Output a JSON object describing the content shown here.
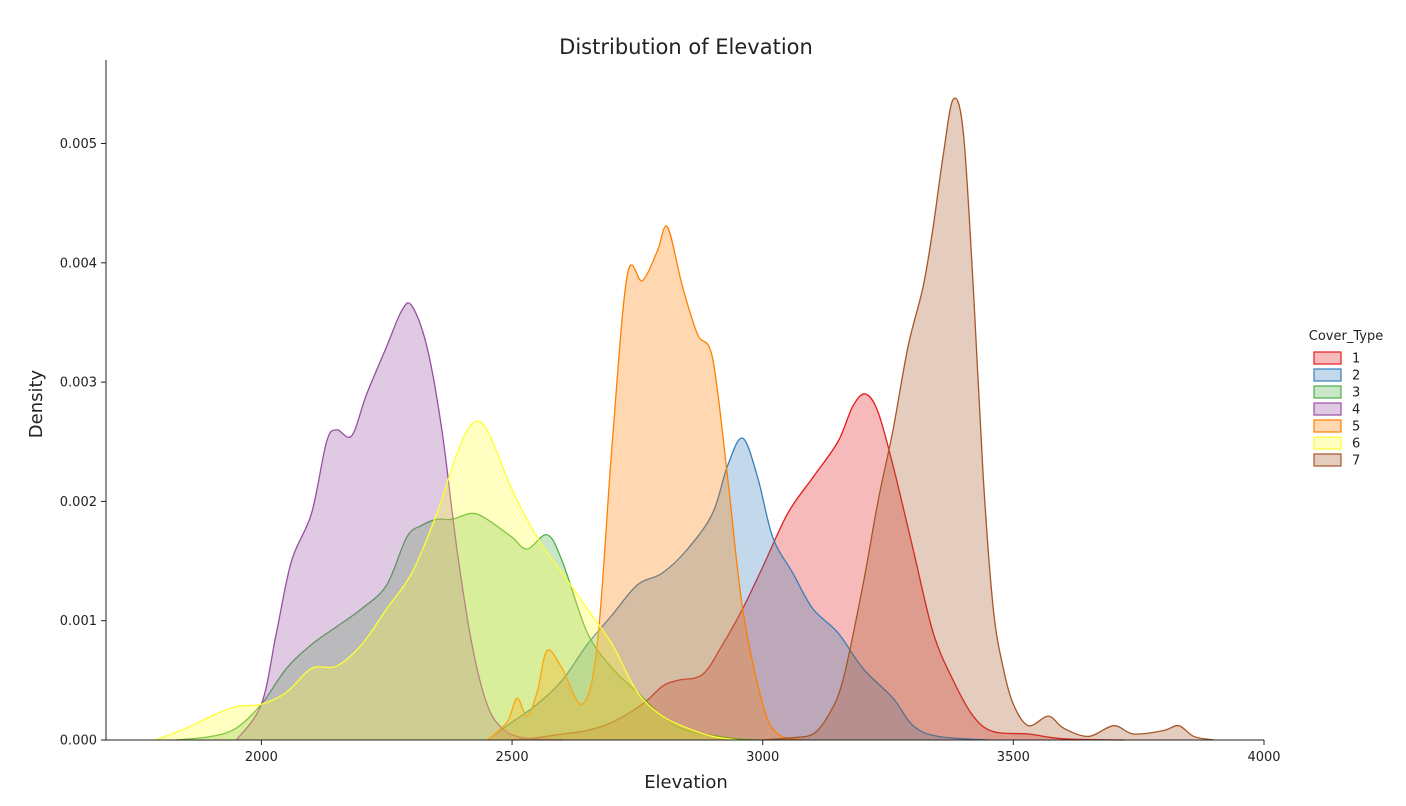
{
  "chart_data": {
    "type": "area",
    "title": "Distribution of Elevation",
    "xlabel": "Elevation",
    "ylabel": "Density",
    "xlim": [
      1690,
      4000
    ],
    "ylim": [
      0,
      0.0057
    ],
    "x_ticks": [
      2000,
      2500,
      3000,
      3500,
      4000
    ],
    "x_tick_labels": [
      "2000",
      "2500",
      "3000",
      "3500",
      "4000"
    ],
    "y_ticks": [
      0,
      0.001,
      0.002,
      0.003,
      0.004,
      0.005
    ],
    "y_tick_labels": [
      "0.000",
      "0.001",
      "0.002",
      "0.003",
      "0.004",
      "0.005"
    ],
    "grid": false,
    "legend": {
      "title": "Cover_Type",
      "placement": "right"
    },
    "series": [
      {
        "name": "1",
        "color": "#e41a1c",
        "points": [
          [
            2500,
            0
          ],
          [
            2550,
            2e-05
          ],
          [
            2600,
            5e-05
          ],
          [
            2650,
            8e-05
          ],
          [
            2700,
            0.00015
          ],
          [
            2760,
            0.0003
          ],
          [
            2800,
            0.00045
          ],
          [
            2830,
            0.0005
          ],
          [
            2880,
            0.00055
          ],
          [
            2920,
            0.0008
          ],
          [
            2960,
            0.0011
          ],
          [
            3000,
            0.00145
          ],
          [
            3050,
            0.0019
          ],
          [
            3100,
            0.0022
          ],
          [
            3150,
            0.0025
          ],
          [
            3180,
            0.0028
          ],
          [
            3205,
            0.0029
          ],
          [
            3230,
            0.00275
          ],
          [
            3260,
            0.0023
          ],
          [
            3300,
            0.0016
          ],
          [
            3340,
            0.0009
          ],
          [
            3380,
            0.0005
          ],
          [
            3420,
            0.0002
          ],
          [
            3460,
            7e-05
          ],
          [
            3530,
            5e-05
          ],
          [
            3600,
            1e-05
          ],
          [
            3720,
            0
          ]
        ]
      },
      {
        "name": "2",
        "color": "#377eb8",
        "points": [
          [
            2450,
            0
          ],
          [
            2500,
            0.00015
          ],
          [
            2550,
            0.0003
          ],
          [
            2600,
            0.0005
          ],
          [
            2650,
            0.0008
          ],
          [
            2700,
            0.00105
          ],
          [
            2750,
            0.0013
          ],
          [
            2800,
            0.0014
          ],
          [
            2850,
            0.0016
          ],
          [
            2900,
            0.0019
          ],
          [
            2930,
            0.0023
          ],
          [
            2960,
            0.00253
          ],
          [
            2990,
            0.0022
          ],
          [
            3020,
            0.0017
          ],
          [
            3060,
            0.0014
          ],
          [
            3100,
            0.0011
          ],
          [
            3150,
            0.0009
          ],
          [
            3200,
            0.0006
          ],
          [
            3260,
            0.00035
          ],
          [
            3300,
            0.00012
          ],
          [
            3350,
            3e-05
          ],
          [
            3450,
            0
          ]
        ]
      },
      {
        "name": "3",
        "color": "#4daf4a",
        "points": [
          [
            1830,
            0
          ],
          [
            1900,
            3e-05
          ],
          [
            1950,
            0.0001
          ],
          [
            2000,
            0.0003
          ],
          [
            2050,
            0.0006
          ],
          [
            2100,
            0.0008
          ],
          [
            2150,
            0.00095
          ],
          [
            2200,
            0.0011
          ],
          [
            2250,
            0.0013
          ],
          [
            2290,
            0.0017
          ],
          [
            2320,
            0.0018
          ],
          [
            2350,
            0.00185
          ],
          [
            2380,
            0.00185
          ],
          [
            2420,
            0.0019
          ],
          [
            2450,
            0.00185
          ],
          [
            2500,
            0.0017
          ],
          [
            2530,
            0.0016
          ],
          [
            2570,
            0.00172
          ],
          [
            2600,
            0.0015
          ],
          [
            2650,
            0.0009
          ],
          [
            2700,
            0.0006
          ],
          [
            2750,
            0.0004
          ],
          [
            2800,
            0.0002
          ],
          [
            2850,
            8e-05
          ],
          [
            2950,
            1e-05
          ],
          [
            3000,
            0
          ]
        ]
      },
      {
        "name": "4",
        "color": "#984ea3",
        "points": [
          [
            1950,
            0
          ],
          [
            2000,
            0.0003
          ],
          [
            2030,
            0.0009
          ],
          [
            2060,
            0.0015
          ],
          [
            2100,
            0.0019
          ],
          [
            2130,
            0.0025
          ],
          [
            2150,
            0.0026
          ],
          [
            2180,
            0.00255
          ],
          [
            2210,
            0.0029
          ],
          [
            2250,
            0.0033
          ],
          [
            2280,
            0.0036
          ],
          [
            2300,
            0.00364
          ],
          [
            2330,
            0.0033
          ],
          [
            2360,
            0.0026
          ],
          [
            2390,
            0.0016
          ],
          [
            2420,
            0.0008
          ],
          [
            2450,
            0.0003
          ],
          [
            2480,
            0.0001
          ],
          [
            2520,
            2e-05
          ],
          [
            2600,
            0
          ]
        ]
      },
      {
        "name": "5",
        "color": "#ff7f00",
        "points": [
          [
            2450,
            0
          ],
          [
            2490,
            0.00015
          ],
          [
            2510,
            0.00035
          ],
          [
            2530,
            0.0002
          ],
          [
            2550,
            0.0004
          ],
          [
            2570,
            0.00075
          ],
          [
            2600,
            0.0006
          ],
          [
            2640,
            0.0003
          ],
          [
            2670,
            0.0008
          ],
          [
            2700,
            0.0025
          ],
          [
            2730,
            0.0039
          ],
          [
            2760,
            0.00385
          ],
          [
            2790,
            0.0041
          ],
          [
            2810,
            0.0043
          ],
          [
            2840,
            0.0038
          ],
          [
            2870,
            0.0034
          ],
          [
            2900,
            0.0032
          ],
          [
            2930,
            0.0022
          ],
          [
            2960,
            0.0011
          ],
          [
            3000,
            0.0003
          ],
          [
            3030,
            5e-05
          ],
          [
            3080,
            0
          ]
        ]
      },
      {
        "name": "6",
        "color": "#ffff33",
        "points": [
          [
            1790,
            0
          ],
          [
            1850,
            0.0001
          ],
          [
            1900,
            0.0002
          ],
          [
            1950,
            0.00028
          ],
          [
            2000,
            0.0003
          ],
          [
            2050,
            0.0004
          ],
          [
            2100,
            0.0006
          ],
          [
            2150,
            0.00062
          ],
          [
            2200,
            0.0008
          ],
          [
            2250,
            0.0011
          ],
          [
            2300,
            0.0014
          ],
          [
            2350,
            0.0019
          ],
          [
            2390,
            0.0024
          ],
          [
            2420,
            0.00265
          ],
          [
            2450,
            0.0026
          ],
          [
            2500,
            0.0021
          ],
          [
            2550,
            0.0017
          ],
          [
            2600,
            0.0014
          ],
          [
            2650,
            0.0011
          ],
          [
            2700,
            0.0008
          ],
          [
            2750,
            0.0004
          ],
          [
            2800,
            0.0002
          ],
          [
            2850,
            0.0001
          ],
          [
            2900,
            3e-05
          ],
          [
            2950,
            0
          ]
        ]
      },
      {
        "name": "7",
        "color": "#a65628",
        "points": [
          [
            3000,
            0
          ],
          [
            3060,
            2e-05
          ],
          [
            3100,
            5e-05
          ],
          [
            3130,
            0.0002
          ],
          [
            3160,
            0.0005
          ],
          [
            3200,
            0.0013
          ],
          [
            3230,
            0.002
          ],
          [
            3260,
            0.0026
          ],
          [
            3290,
            0.0033
          ],
          [
            3320,
            0.0038
          ],
          [
            3340,
            0.0043
          ],
          [
            3360,
            0.0049
          ],
          [
            3380,
            0.00537
          ],
          [
            3400,
            0.0051
          ],
          [
            3420,
            0.0038
          ],
          [
            3440,
            0.0022
          ],
          [
            3460,
            0.0011
          ],
          [
            3480,
            0.0006
          ],
          [
            3500,
            0.0003
          ],
          [
            3530,
            0.00012
          ],
          [
            3570,
            0.0002
          ],
          [
            3600,
            0.0001
          ],
          [
            3650,
            3e-05
          ],
          [
            3700,
            0.00012
          ],
          [
            3740,
            5e-05
          ],
          [
            3800,
            8e-05
          ],
          [
            3830,
            0.00012
          ],
          [
            3860,
            3e-05
          ],
          [
            3900,
            0
          ]
        ]
      }
    ]
  }
}
